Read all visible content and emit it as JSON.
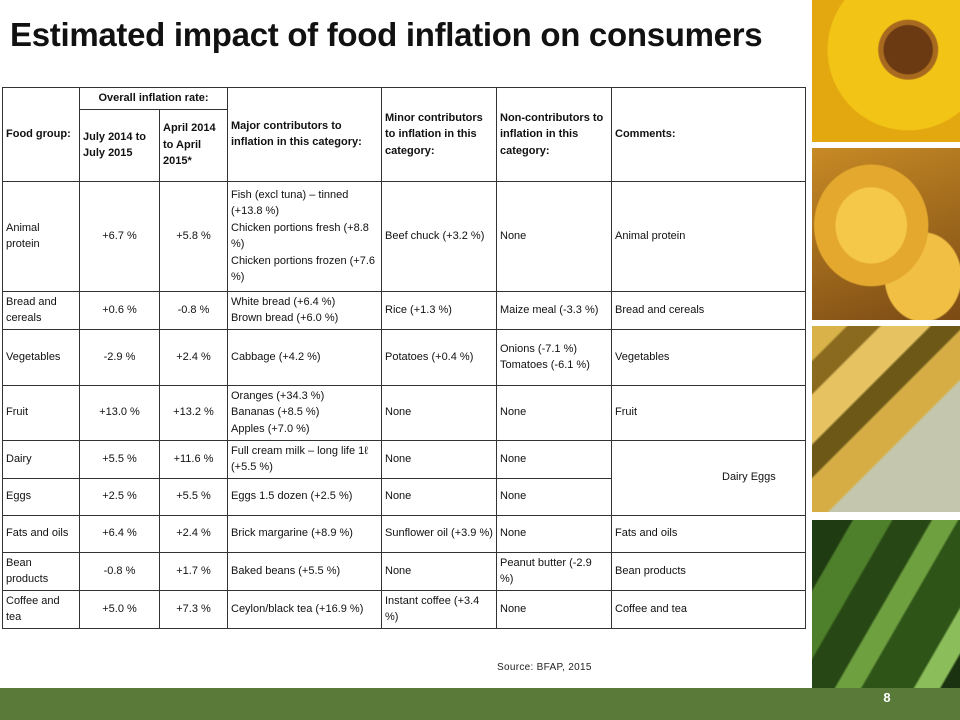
{
  "title": "Estimated impact of food inflation on consumers",
  "table": {
    "headers": {
      "food_group": "Food group:",
      "overall": "Overall inflation rate:",
      "period1": "July 2014 to July 2015",
      "period2": "April 2014 to April 2015*",
      "major": "Major contributors to inflation in this category:",
      "minor": "Minor contributors to inflation in this category:",
      "non": "Non-contributors to inflation in this category:",
      "comments": "Comments:"
    },
    "rows": [
      {
        "group": "Animal protein",
        "r1": "+6.7 %",
        "r2": "+5.8 %",
        "major": [
          "Fish (excl tuna) – tinned (+13.8 %)",
          "Chicken portions fresh (+8.8 %)",
          "Chicken portions frozen (+7.6 %)"
        ],
        "minor": "Beef chuck (+3.2 %)",
        "non": "None",
        "comments": "Animal protein"
      },
      {
        "group": "Bread and cereals",
        "r1": "+0.6 %",
        "r2": "-0.8 %",
        "major": [
          "White bread (+6.4 %)",
          "Brown bread (+6.0 %)"
        ],
        "minor": "Rice (+1.3 %)",
        "non": "Maize meal (-3.3 %)",
        "comments": "Bread and cereals"
      },
      {
        "group": "Vegetables",
        "r1": "-2.9 %",
        "r2": "+2.4 %",
        "major": [
          "Cabbage (+4.2 %)"
        ],
        "minor": "Potatoes (+0.4 %)",
        "non": "Onions (-7.1 %) Tomatoes (-6.1 %)",
        "comments": "Vegetables"
      },
      {
        "group": "Fruit",
        "r1": "+13.0 %",
        "r2": "+13.2 %",
        "major": [
          "Oranges (+34.3 %)",
          "Bananas (+8.5 %)",
          "Apples (+7.0 %)"
        ],
        "minor": "None",
        "non": "None",
        "comments": "Fruit"
      },
      {
        "group": "Dairy",
        "r1": "+5.5 %",
        "r2": "+11.6 %",
        "major": [
          "Full cream milk – long life 1ℓ (+5.5 %)"
        ],
        "minor": "None",
        "non": "None",
        "comments": "Dairy Eggs"
      },
      {
        "group": "Eggs",
        "r1": "+2.5 %",
        "r2": "+5.5 %",
        "major": [
          "Eggs 1.5 dozen (+2.5 %)"
        ],
        "minor": "None",
        "non": "None"
      },
      {
        "group": "Fats and oils",
        "r1": "+6.4 %",
        "r2": "+2.4 %",
        "major": [
          "Brick margarine (+8.9 %)"
        ],
        "minor": "Sunflower oil (+3.9 %)",
        "non": "None",
        "comments": "Fats and oils"
      },
      {
        "group": "Bean products",
        "r1": "-0.8 %",
        "r2": "+1.7 %",
        "major": [
          "Baked beans (+5.5 %)"
        ],
        "minor": "None",
        "non": "Peanut butter (-2.9 %)",
        "comments": "Bean products"
      },
      {
        "group": "Coffee and tea",
        "r1": "+5.0 %",
        "r2": "+7.3 %",
        "major": [
          "Ceylon/black tea (+16.9 %)"
        ],
        "minor": "Instant coffee (+3.4 %)",
        "non": "None",
        "comments": "Coffee and tea"
      }
    ]
  },
  "source": "Source: BFAP, 2015",
  "page_number": "8"
}
